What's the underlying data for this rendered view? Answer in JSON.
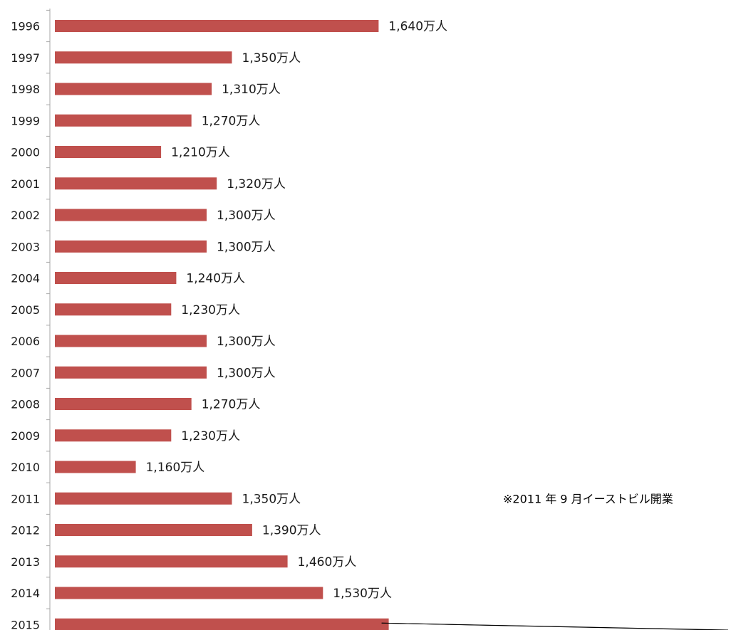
{
  "chart_data": {
    "type": "bar",
    "orientation": "horizontal",
    "categories": [
      "1996",
      "1997",
      "1998",
      "1999",
      "2000",
      "2001",
      "2002",
      "2003",
      "2004",
      "2005",
      "2006",
      "2007",
      "2008",
      "2009",
      "2010",
      "2011",
      "2012",
      "2013",
      "2014",
      "2015"
    ],
    "values": [
      1640,
      1350,
      1310,
      1270,
      1210,
      1320,
      1300,
      1300,
      1240,
      1230,
      1300,
      1300,
      1270,
      1230,
      1160,
      1350,
      1390,
      1460,
      1530,
      1660
    ],
    "value_labels": [
      "1,640万人",
      "1,350万人",
      "1,310万人",
      "1,270万人",
      "1,210万人",
      "1,320万人",
      "1,300万人",
      "1,300万人",
      "1,240万人",
      "1,230万人",
      "1,300万人",
      "1,300万人",
      "1,270万人",
      "1,230万人",
      "1,160万人",
      "1,350万人",
      "1,390万人",
      "1,460万人",
      "1,530万人",
      ""
    ],
    "xlim": [
      1000,
      1700
    ],
    "grid": false,
    "title": "",
    "xlabel": "",
    "ylabel": "",
    "bar_color": "#c0504d",
    "axis_color": "#a6a6a6",
    "annotation": {
      "text": "※2011 年 9 月イーストビル開業",
      "category": "2011"
    }
  }
}
